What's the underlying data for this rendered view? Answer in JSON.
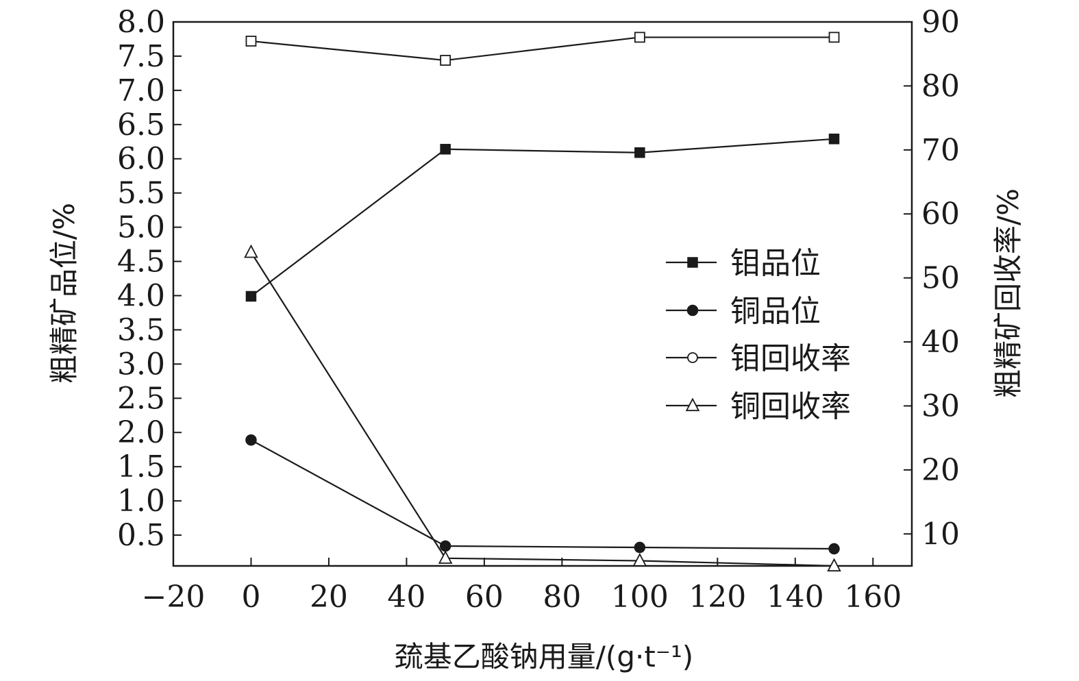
{
  "chart_data": {
    "type": "line",
    "xlabel": "巯基乙酸钠用量/(g·t⁻¹)",
    "ylabel_left": "粗精矿品位/%",
    "ylabel_right": "粗精矿回收率/%",
    "xlim": [
      -20,
      170
    ],
    "ylim_left": [
      0.05,
      8.0
    ],
    "ylim_right": [
      5,
      90
    ],
    "x_ticks": [
      -20,
      0,
      20,
      40,
      60,
      80,
      100,
      120,
      140,
      160
    ],
    "x_tick_labels": [
      "−20",
      "0",
      "20",
      "40",
      "60",
      "80",
      "100",
      "120",
      "140",
      "160"
    ],
    "y_left_ticks": [
      0.5,
      1.0,
      1.5,
      2.0,
      2.5,
      3.0,
      3.5,
      4.0,
      4.5,
      5.0,
      5.5,
      6.0,
      6.5,
      7.0,
      7.5,
      8.0
    ],
    "y_left_tick_labels": [
      "0.5",
      "1.0",
      "1.5",
      "2.0",
      "2.5",
      "3.0",
      "3.5",
      "4.0",
      "4.5",
      "5.0",
      "5.5",
      "6.0",
      "6.5",
      "7.0",
      "7.5",
      "8.0"
    ],
    "y_right_ticks": [
      10,
      20,
      30,
      40,
      50,
      60,
      70,
      80,
      90
    ],
    "y_right_tick_labels": [
      "10",
      "20",
      "30",
      "40",
      "50",
      "60",
      "70",
      "80",
      "90"
    ],
    "grid": false,
    "legend_position": "center-right",
    "series": [
      {
        "name": "钼品位",
        "axis": "left",
        "marker": "square-filled",
        "x": [
          0,
          50,
          100,
          150
        ],
        "y": [
          3.99,
          6.14,
          6.09,
          6.29
        ]
      },
      {
        "name": "铜品位",
        "axis": "left",
        "marker": "circle-filled",
        "x": [
          0,
          50,
          100,
          150
        ],
        "y": [
          1.89,
          0.34,
          0.32,
          0.3
        ]
      },
      {
        "name": "钼回收率",
        "axis": "right",
        "marker": "square-open",
        "x": [
          0,
          50,
          100,
          150
        ],
        "y": [
          87.0,
          84.0,
          87.6,
          87.6
        ]
      },
      {
        "name": "铜回收率",
        "axis": "right",
        "marker": "triangle-open",
        "x": [
          0,
          50,
          100,
          150
        ],
        "y": [
          54.0,
          6.2,
          5.8,
          5.0
        ]
      }
    ]
  },
  "legend_markers": {
    "钼回收率": "circle-open"
  }
}
